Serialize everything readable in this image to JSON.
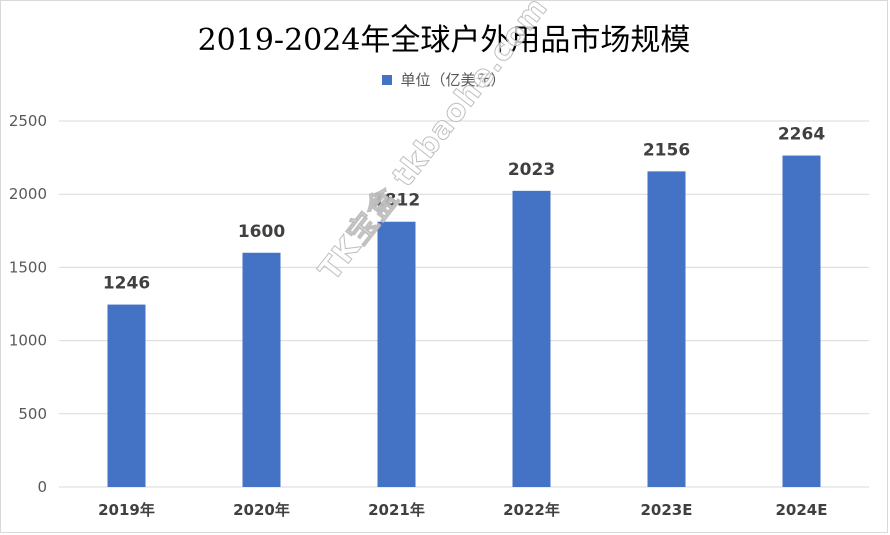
{
  "chart_data": {
    "type": "bar",
    "title": "2019-2024年全球户外用品市场规模",
    "legend": {
      "label": "单位（亿美元）",
      "color": "#4472c4",
      "position": "top"
    },
    "categories": [
      "2019年",
      "2020年",
      "2021年",
      "2022年",
      "2023E",
      "2024E"
    ],
    "series": [
      {
        "name": "单位（亿美元）",
        "values": [
          1246,
          1600,
          1812,
          2023,
          2156,
          2264
        ]
      }
    ],
    "y_ticks": [
      "0",
      "500",
      "1000",
      "1500",
      "2000",
      "2500"
    ],
    "ylim": [
      0,
      2500
    ],
    "grid": true,
    "bar_color": "#4472c4",
    "grid_color": "#d9d9d9"
  },
  "watermark": {
    "text": "TK宝盒 tkbaohe.com"
  }
}
